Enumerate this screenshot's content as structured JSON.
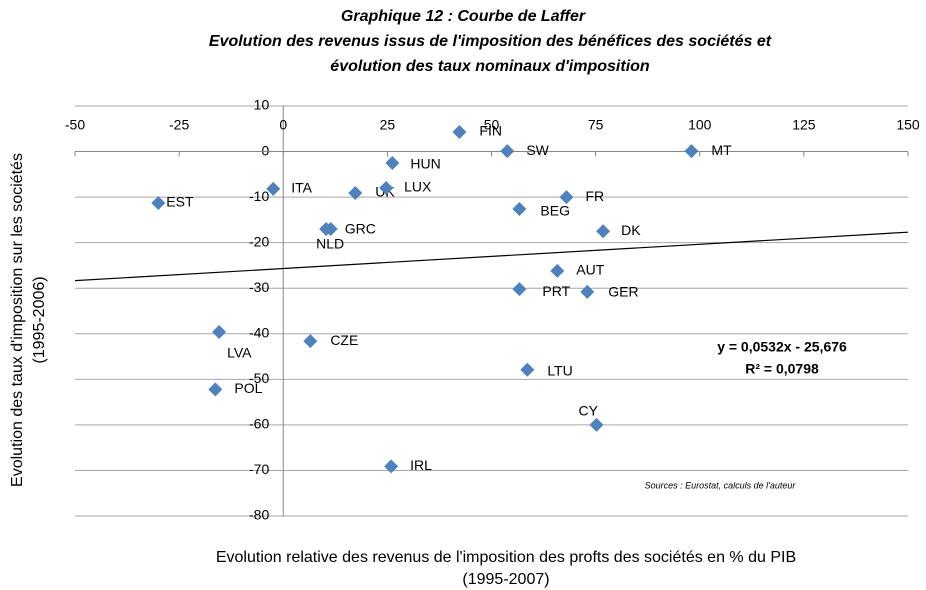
{
  "chart_data": {
    "type": "scatter",
    "title": [
      "Graphique 12 : Courbe de Laffer",
      "Evolution des revenus issus de l'imposition des bénéfices des sociétés et",
      "évolution des taux nominaux d'imposition"
    ],
    "xlabel": [
      "Evolution relative des revenus de l'imposition des profts des sociétés en % du PIB",
      "(1995-2007)"
    ],
    "ylabel": [
      "Evolution des taux d'imposition sur les sociétés",
      "(1995-2006)"
    ],
    "labels": [
      "EST",
      "ITA",
      "UK",
      "LUX",
      "HUN",
      "FIN",
      "SW",
      "MT",
      "FR",
      "BEG",
      "DK",
      "GRC",
      "NLD",
      "AUT",
      "PRT",
      "GER",
      "LVA",
      "CZE",
      "LTU",
      "POL",
      "CY",
      "IRL"
    ],
    "x": [
      -30,
      -2.4,
      17.3,
      24.7,
      26.2,
      42.3,
      53.8,
      98,
      68,
      56.7,
      76.8,
      11.4,
      10.3,
      65.8,
      56.7,
      73,
      -15.4,
      6.5,
      58.6,
      -16.3,
      75.2,
      25.9
    ],
    "y": [
      -11.3,
      -8.2,
      -9.1,
      -8,
      -2.5,
      4.3,
      0.1,
      0.1,
      -10,
      -12.6,
      -17.5,
      -17,
      -17,
      -26.2,
      -30.2,
      -30.8,
      -39.6,
      -41.6,
      -47.9,
      -52.2,
      -60,
      -69.1
    ],
    "color": "#4f81bd",
    "xlim": [
      -50,
      150
    ],
    "ylim": [
      -80,
      10
    ],
    "xticks": [
      -50,
      -25,
      0,
      25,
      50,
      75,
      100,
      125,
      150
    ],
    "yticks": [
      -80,
      -70,
      -60,
      -50,
      -40,
      -30,
      -20,
      -10,
      0,
      10
    ],
    "grid": true,
    "trendline": {
      "slope": 0.0532,
      "intercept": -25.676,
      "equation": "y = 0,0532x - 25,676",
      "r2": "R² = 0,0798"
    },
    "source": "Sources : Eurostat, calculs de l'auteur"
  }
}
